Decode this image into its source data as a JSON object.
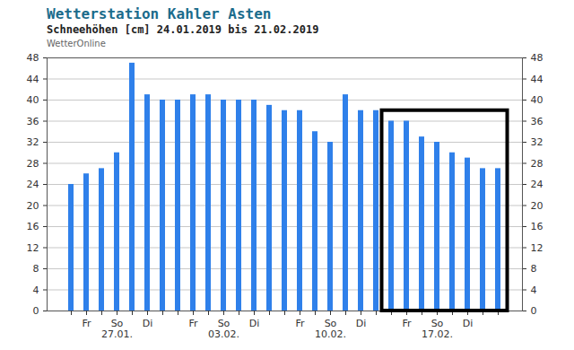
{
  "chart_data": {
    "type": "bar",
    "title": "Wetterstation Kahler Asten",
    "subtitle": "Schneehöhen [cm] 24.01.2019 bis 21.02.2019",
    "source": "WetterOnline",
    "categories": [
      null,
      "Fr",
      null,
      "So\n27.01.",
      null,
      "Di",
      null,
      null,
      "Fr",
      null,
      "So\n03.02.",
      null,
      "Di",
      null,
      null,
      "Fr",
      null,
      "So\n10.02.",
      null,
      "Di",
      null,
      null,
      "Fr",
      null,
      "So\n17.02.",
      null,
      "Di",
      null,
      null
    ],
    "values": [
      24,
      26,
      27,
      30,
      47,
      41,
      40,
      40,
      41,
      41,
      40,
      40,
      40,
      39,
      38,
      38,
      34,
      32,
      41,
      38,
      38,
      36,
      36,
      33,
      32,
      30,
      29,
      27,
      27
    ],
    "color": "#2f80ea",
    "ylim": [
      0,
      48
    ],
    "yticks": [
      0,
      4,
      8,
      12,
      16,
      20,
      24,
      28,
      32,
      36,
      40,
      44,
      48
    ],
    "grid": true,
    "highlight": {
      "first": 21,
      "last": 28,
      "top": 38
    }
  }
}
